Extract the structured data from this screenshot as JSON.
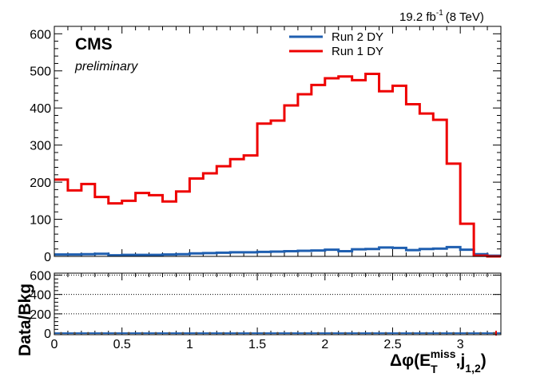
{
  "header": {
    "lumi": "19.2 fb",
    "lumi_exp": "-1",
    "energy": "(8 TeV)",
    "cms": "CMS",
    "prelim": "preliminary"
  },
  "xlabel": {
    "prefix": "Δφ(E",
    "sub_t": "T",
    "sup_miss": "miss",
    "mid": ",j",
    "sub_j": "1,2",
    "close": ")"
  },
  "ratio_ylabel": "Data/Bkg",
  "colors": {
    "run2": "#1f5fb0",
    "run1": "#ee0000"
  },
  "chart_data": [
    {
      "type": "line",
      "style": "step-histogram",
      "title": "",
      "xlabel": "Δφ(E_T^miss,j_1,2)",
      "ylabel": "",
      "xlim": [
        0,
        3.3
      ],
      "ylim": [
        0,
        620
      ],
      "grid": false,
      "legend": "top-center",
      "x_ticks": [
        "0",
        "0.5",
        "1",
        "1.5",
        "2",
        "2.5",
        "3"
      ],
      "y_ticks": [
        "0",
        "100",
        "200",
        "300",
        "400",
        "500",
        "600"
      ],
      "bin_edges": [
        0,
        0.1,
        0.2,
        0.3,
        0.4,
        0.5,
        0.6,
        0.7,
        0.8,
        0.9,
        1.0,
        1.1,
        1.2,
        1.3,
        1.4,
        1.5,
        1.6,
        1.7,
        1.8,
        1.9,
        2.0,
        2.1,
        2.2,
        2.3,
        2.4,
        2.5,
        2.6,
        2.7,
        2.8,
        2.9,
        3.0,
        3.1,
        3.2,
        3.3
      ],
      "series": [
        {
          "name": "Run 2 DY",
          "color": "#1f5fb0",
          "values": [
            5,
            5,
            6,
            7,
            3,
            4,
            4,
            4,
            5,
            6,
            8,
            9,
            10,
            11,
            11,
            12,
            13,
            14,
            15,
            16,
            18,
            14,
            19,
            20,
            24,
            23,
            17,
            20,
            21,
            25,
            18,
            6,
            2
          ]
        },
        {
          "name": "Run 1 DY",
          "color": "#ee0000",
          "values": [
            207,
            178,
            195,
            160,
            143,
            150,
            171,
            165,
            148,
            175,
            210,
            224,
            243,
            262,
            272,
            358,
            366,
            407,
            437,
            462,
            480,
            485,
            475,
            492,
            445,
            460,
            410,
            385,
            368,
            250,
            88,
            2,
            0
          ]
        }
      ]
    },
    {
      "type": "line",
      "title": "",
      "xlabel": "",
      "ylabel": "Data/Bkg",
      "xlim": [
        0,
        3.3
      ],
      "ylim": [
        -15,
        620
      ],
      "grid": true,
      "y_ticks": [
        "0",
        "200",
        "400",
        "600"
      ],
      "series": [
        {
          "name": "",
          "color": "#1f5fb0",
          "values": [
            0,
            0,
            0,
            0,
            0,
            0,
            0,
            0,
            0,
            0,
            0,
            0,
            0,
            0,
            0,
            0,
            0,
            0,
            0,
            0,
            0,
            0,
            0,
            0,
            0,
            0,
            0,
            0,
            0,
            0,
            0,
            0,
            0
          ]
        }
      ]
    }
  ]
}
